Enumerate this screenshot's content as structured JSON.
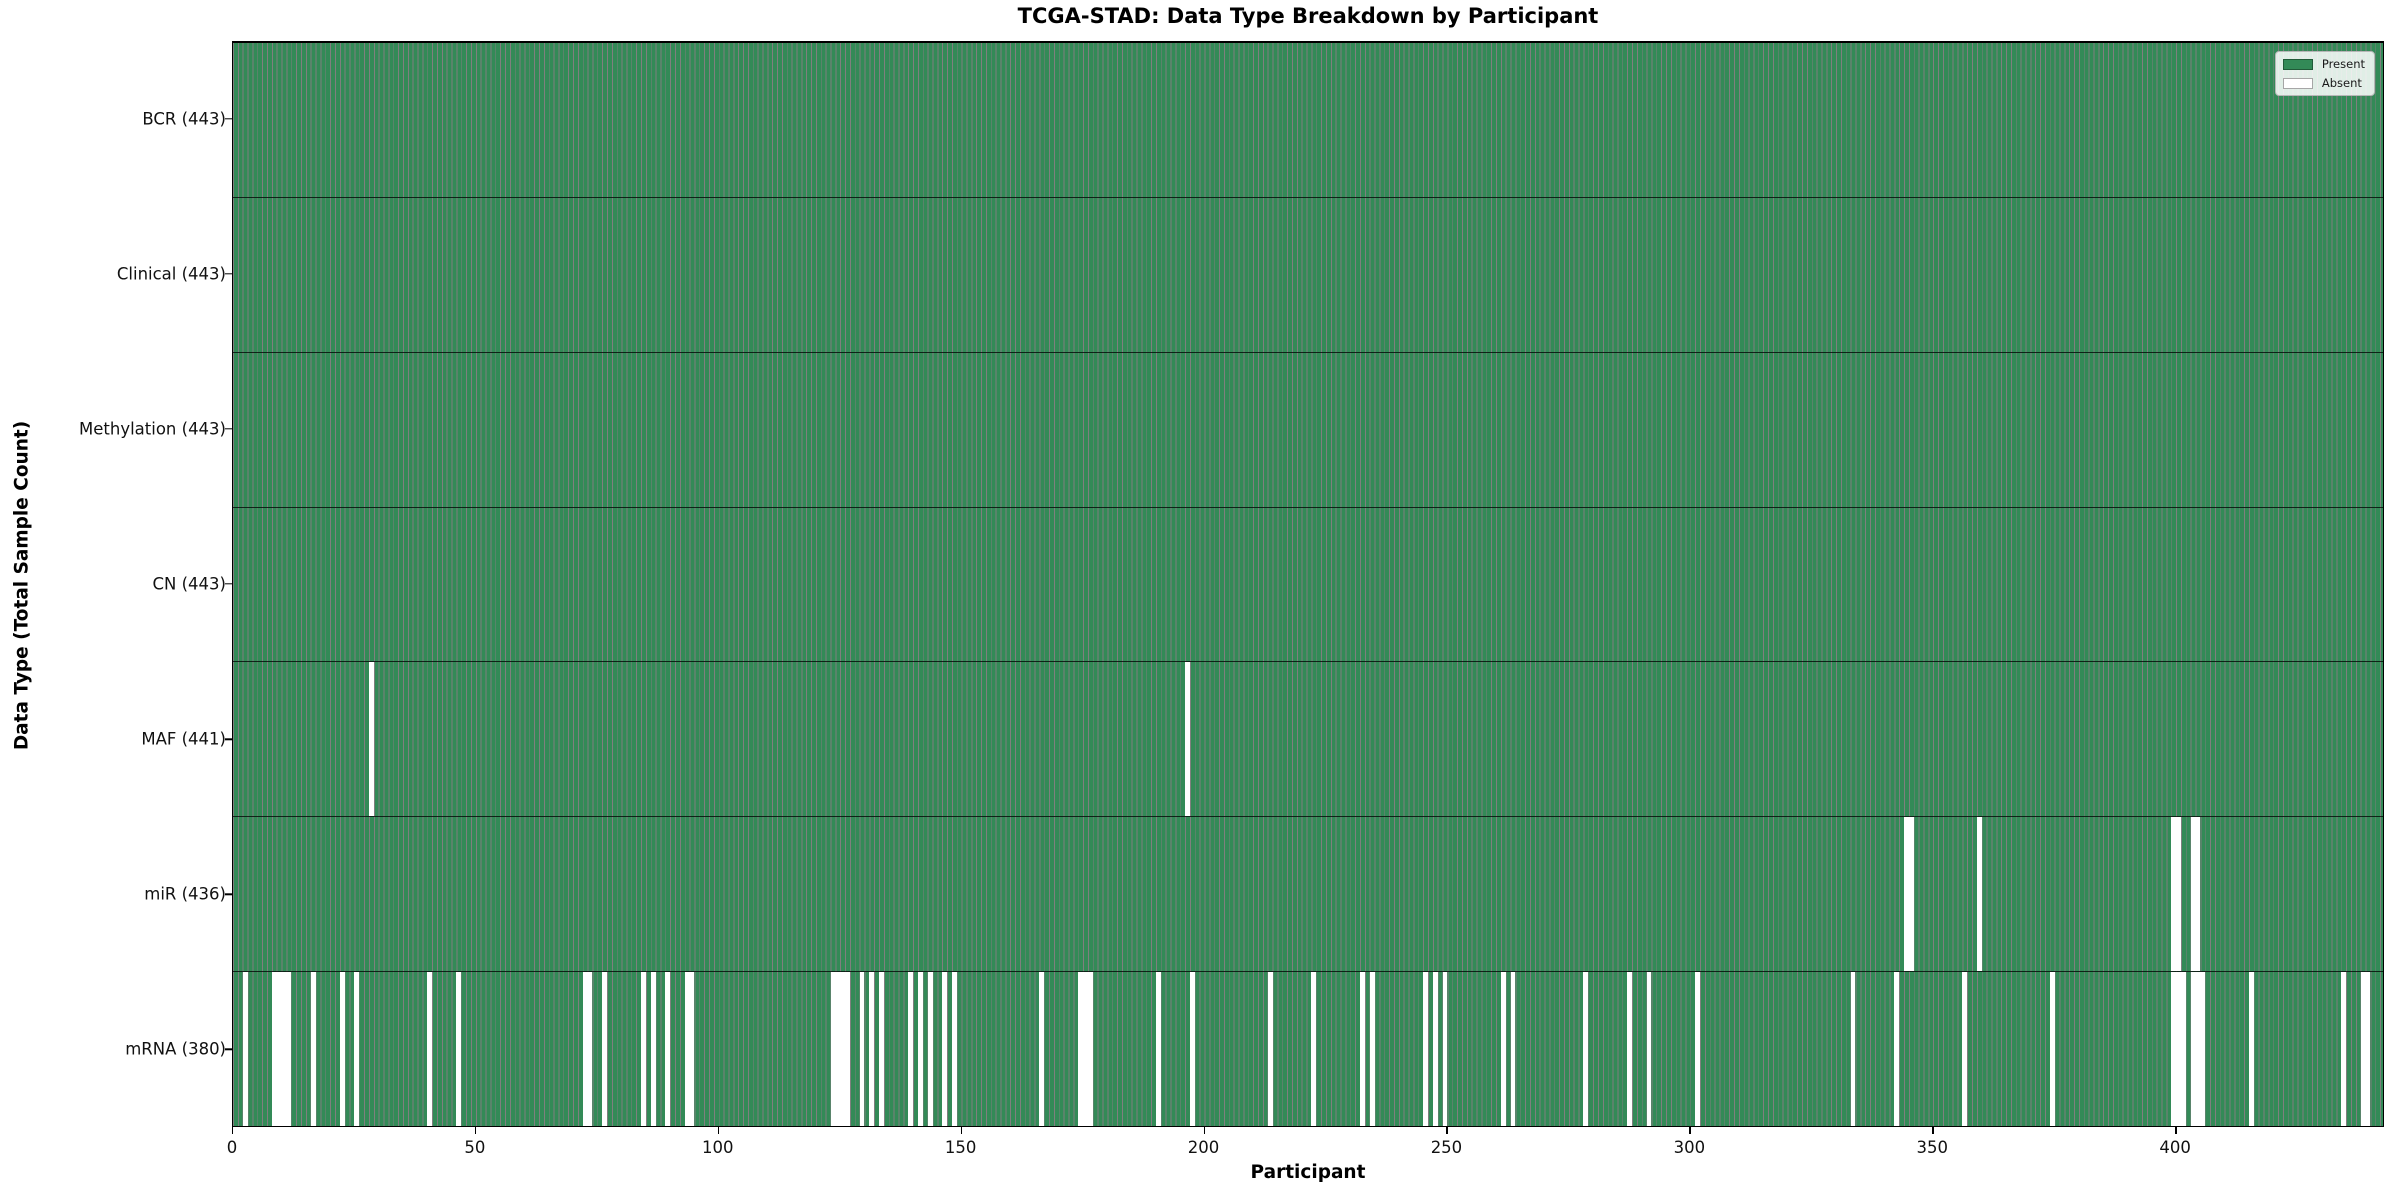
{
  "title": "TCGA-STAD: Data Type Breakdown by Participant",
  "xlabel": "Participant",
  "ylabel": "Data Type (Total Sample Count)",
  "legend": {
    "present_label": "Present",
    "absent_label": "Absent"
  },
  "colors": {
    "present_fill": "#338a57",
    "absent_fill": "#ffffff",
    "bar_edge": "rgba(0,0,0,0.5)"
  },
  "chart_data": {
    "type": "heatmap",
    "title": "TCGA-STAD: Data Type Breakdown by Participant",
    "xlabel": "Participant",
    "ylabel": "Data Type (Total Sample Count)",
    "n_participants": 443,
    "x_range": [
      0,
      443
    ],
    "x_ticks": [
      0,
      50,
      100,
      150,
      200,
      250,
      300,
      350,
      400
    ],
    "legend_entries": [
      "Present",
      "Absent"
    ],
    "legend_position": "upper right",
    "grid": false,
    "value_encoding": {
      "present": "green cell",
      "absent": "white cell"
    },
    "rows": [
      {
        "label": "BCR (443)",
        "data_type": "BCR",
        "total_samples": 443,
        "absent_participants": []
      },
      {
        "label": "Clinical (443)",
        "data_type": "Clinical",
        "total_samples": 443,
        "absent_participants": []
      },
      {
        "label": "Methylation (443)",
        "data_type": "Methylation",
        "total_samples": 443,
        "absent_participants": []
      },
      {
        "label": "CN (443)",
        "data_type": "CN",
        "total_samples": 443,
        "absent_participants": []
      },
      {
        "label": "MAF (441)",
        "data_type": "MAF",
        "total_samples": 441,
        "absent_participants": [
          28,
          196
        ]
      },
      {
        "label": "miR (436)",
        "data_type": "miR",
        "total_samples": 436,
        "absent_participants": [
          344,
          345,
          359,
          399,
          400,
          403,
          404
        ]
      },
      {
        "label": "mRNA (380)",
        "data_type": "mRNA",
        "total_samples": 380,
        "absent_participants": [
          2,
          8,
          9,
          10,
          11,
          16,
          22,
          25,
          40,
          46,
          72,
          73,
          76,
          84,
          86,
          89,
          93,
          94,
          123,
          124,
          125,
          126,
          129,
          131,
          133,
          139,
          141,
          143,
          146,
          148,
          166,
          174,
          175,
          176,
          190,
          197,
          213,
          222,
          232,
          234,
          245,
          247,
          249,
          261,
          263,
          278,
          287,
          291,
          301,
          333,
          342,
          356,
          374,
          399,
          400,
          401,
          403,
          404,
          405,
          415,
          434,
          438,
          439
        ]
      }
    ]
  }
}
